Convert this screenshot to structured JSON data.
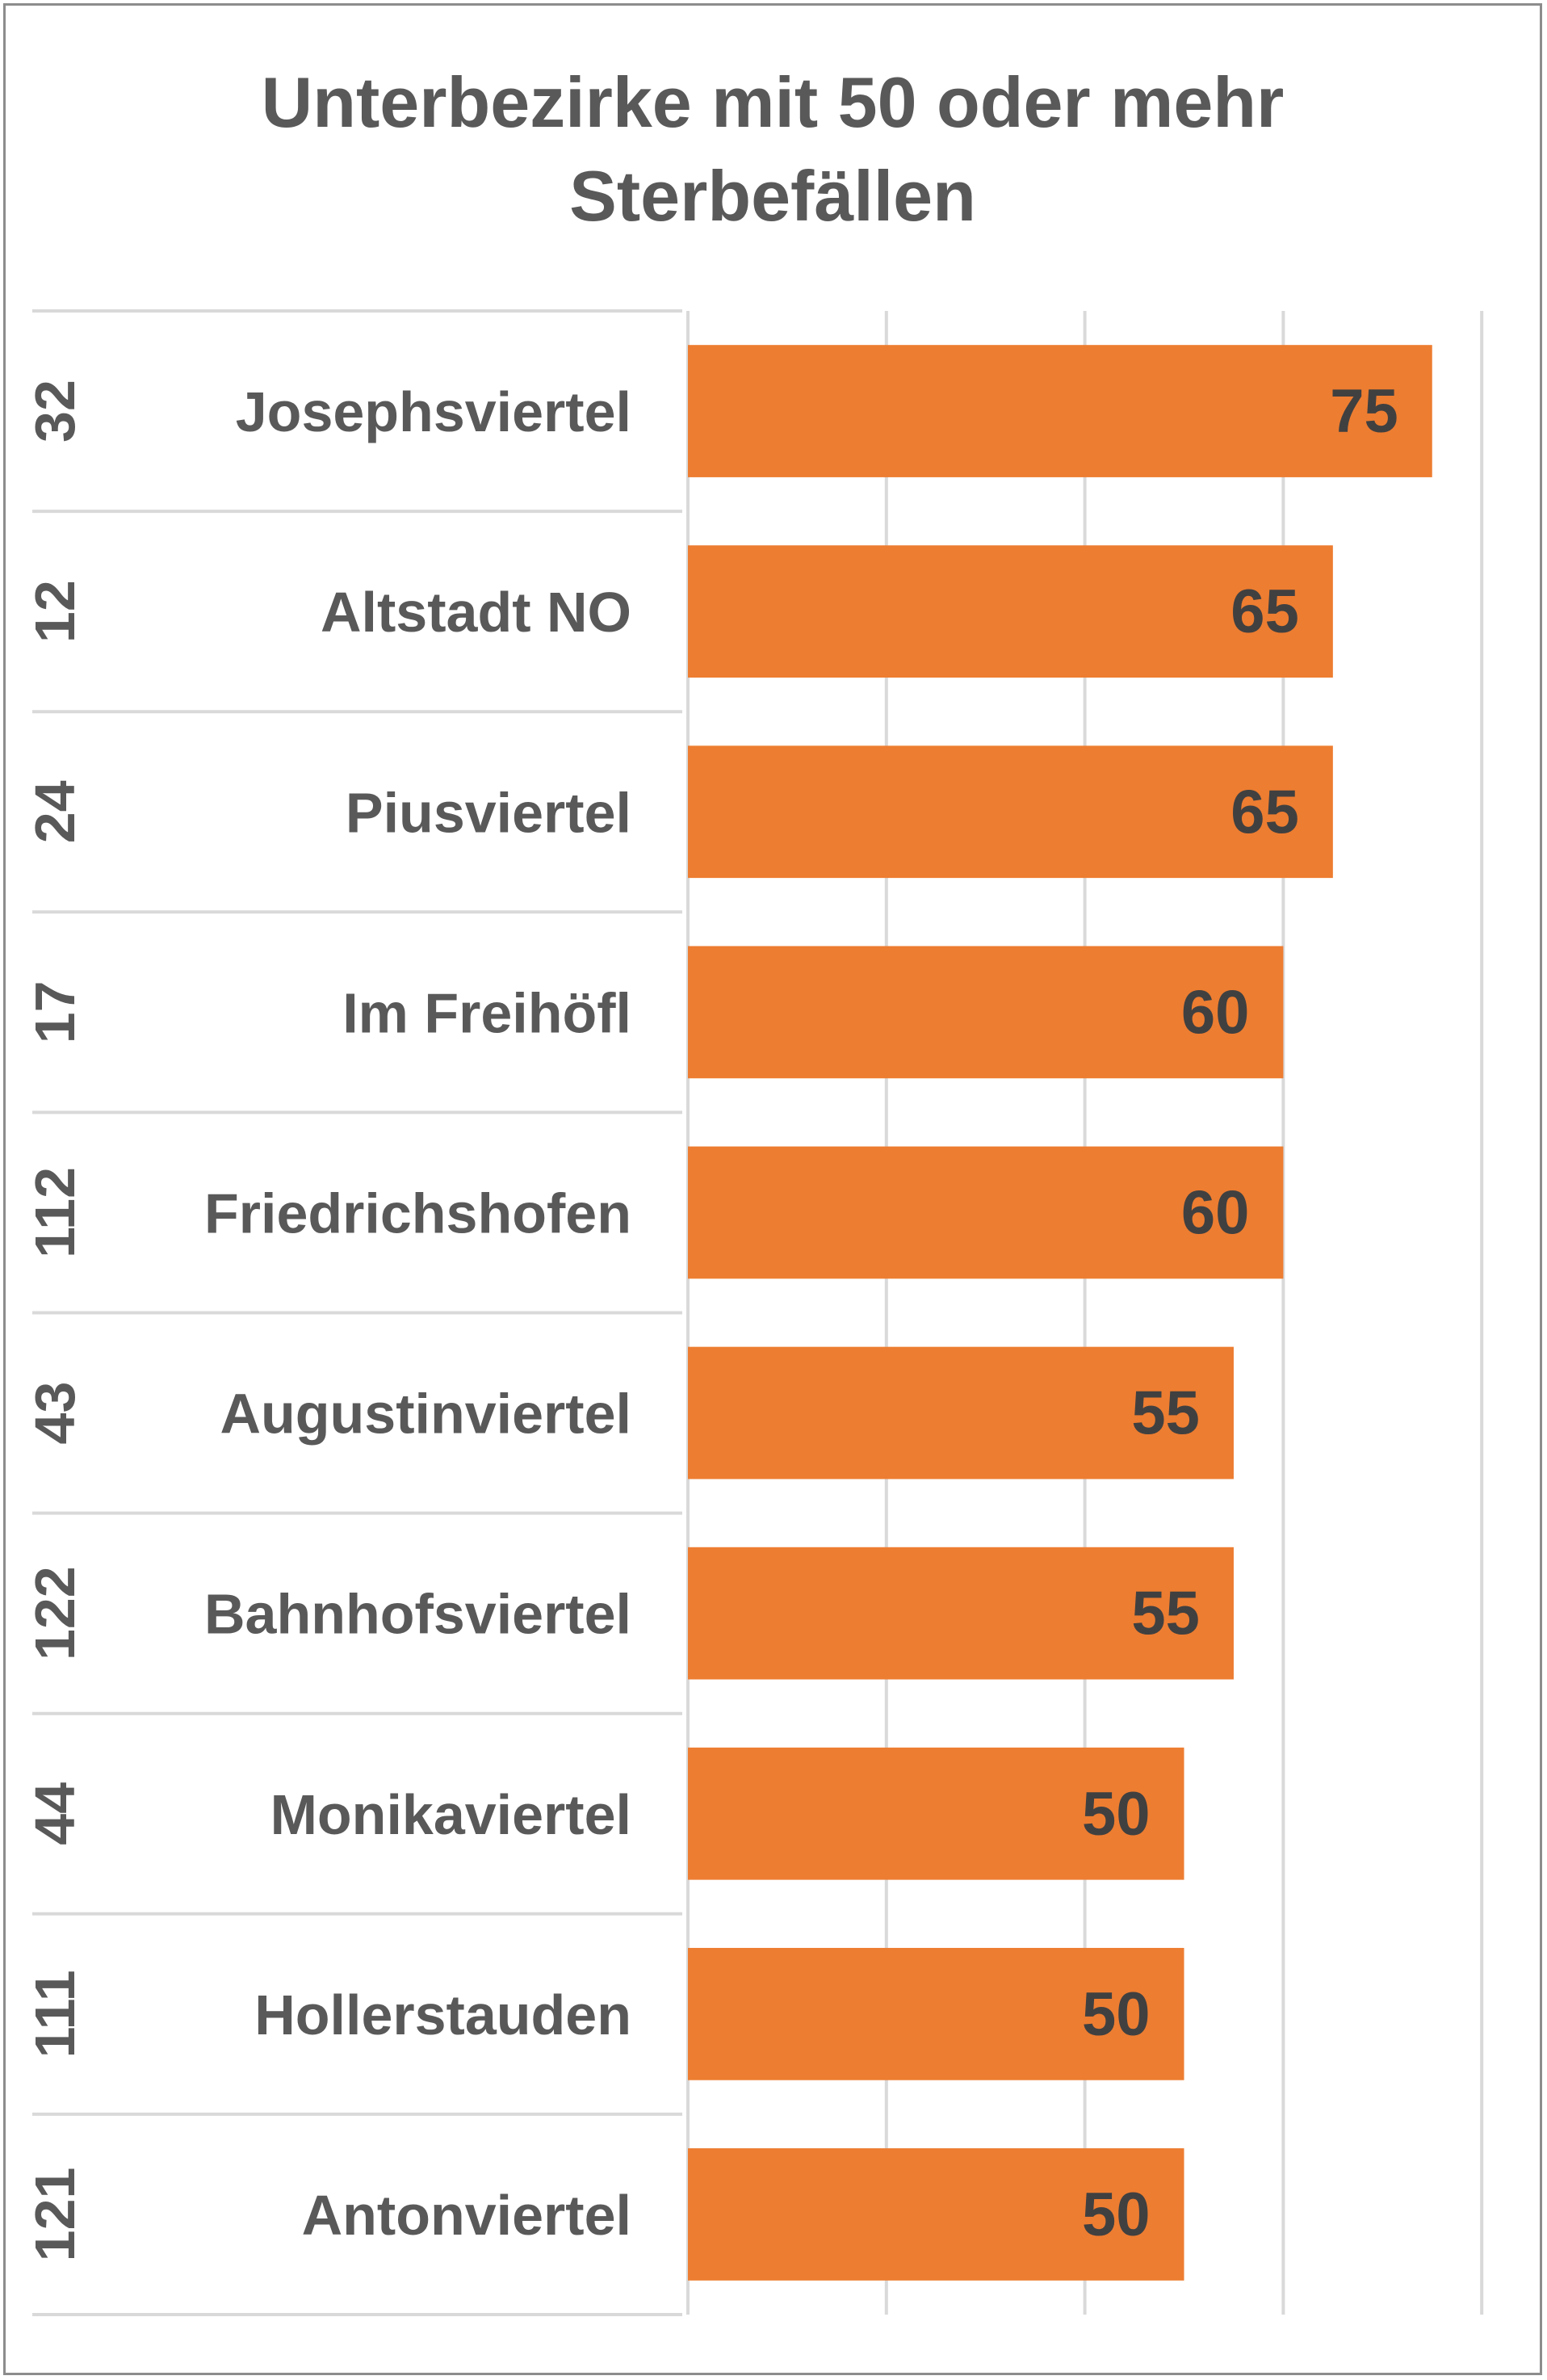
{
  "title_lines": [
    "Unterbezirke mit 50 oder mehr",
    "Sterbefällen"
  ],
  "colors": {
    "bar": "#ED7D31",
    "grid": "#D9D9D9",
    "text": "#595959",
    "value_text": "#404040"
  },
  "chart_data": {
    "type": "bar",
    "orientation": "horizontal",
    "title": "Unterbezirke mit 50 oder mehr Sterbefällen",
    "categories": [
      {
        "code": "32",
        "name": "Josephsviertel"
      },
      {
        "code": "12",
        "name": "Altstadt NO"
      },
      {
        "code": "24",
        "name": "Piusviertel"
      },
      {
        "code": "17",
        "name": "Im Freihöfl"
      },
      {
        "code": "112",
        "name": "Friedrichshofen"
      },
      {
        "code": "43",
        "name": "Augustinviertel"
      },
      {
        "code": "122",
        "name": "Bahnhofsviertel"
      },
      {
        "code": "44",
        "name": "Monikaviertel"
      },
      {
        "code": "111",
        "name": "Hollerstauden"
      },
      {
        "code": "121",
        "name": "Antonviertel"
      }
    ],
    "values": [
      75,
      65,
      65,
      60,
      60,
      55,
      55,
      50,
      50,
      50
    ],
    "xlim": [
      0,
      80
    ],
    "grid": true,
    "legend": false
  }
}
